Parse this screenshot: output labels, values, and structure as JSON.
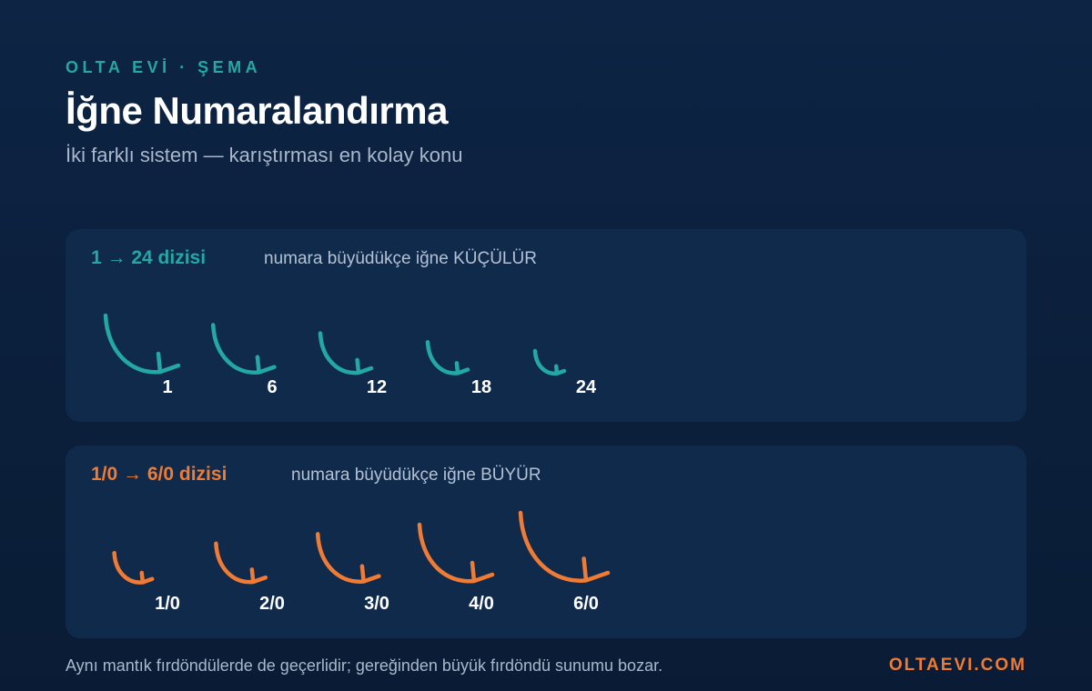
{
  "header": {
    "eyebrow": "OLTA EVİ · ŞEMA",
    "title": "İğne Numaralandırma",
    "subtitle": "İki farklı sistem — karıştırması en kolay konu"
  },
  "series_small": {
    "title": "1 → 24 dizisi",
    "note": "numara büyüdükçe iğne KÜÇÜLÜR",
    "color": "#23a8a3",
    "hooks": [
      {
        "label": "1",
        "relative_size": 1.0
      },
      {
        "label": "6",
        "relative_size": 0.84
      },
      {
        "label": "12",
        "relative_size": 0.7
      },
      {
        "label": "18",
        "relative_size": 0.55
      },
      {
        "label": "24",
        "relative_size": 0.4
      }
    ]
  },
  "series_large": {
    "title": "1/0 → 6/0 dizisi",
    "note": "numara büyüdükçe iğne BÜYÜR",
    "color": "#ef7b34",
    "hooks": [
      {
        "label": "1/0",
        "relative_size": 0.52
      },
      {
        "label": "2/0",
        "relative_size": 0.68
      },
      {
        "label": "3/0",
        "relative_size": 0.84
      },
      {
        "label": "4/0",
        "relative_size": 1.0
      },
      {
        "label": "6/0",
        "relative_size": 1.2
      }
    ]
  },
  "footer": {
    "note": "Aynı mantık fırdöndülerde de geçerlidir; gereğinden büyük fırdöndü sunumu bozar.",
    "brand": "OLTAEVI.COM"
  }
}
